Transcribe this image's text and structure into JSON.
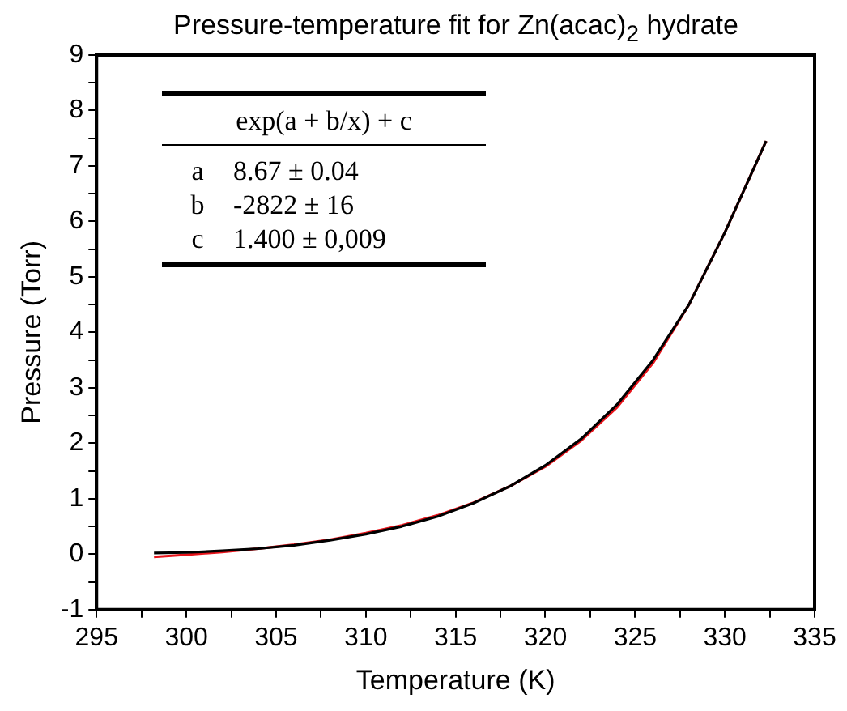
{
  "chart_data": {
    "type": "line",
    "title": "Pressure-temperature fit for Zn(acac)$_{2}$ hydrate",
    "xlabel": "Temperature (K)",
    "ylabel": "Pressure (Torr)",
    "xlim": [
      295,
      335
    ],
    "xticks": [
      295,
      {
        "value": 297.5,
        "label": null
      },
      300,
      {
        "value": 302.5,
        "label": null
      },
      305,
      {
        "value": 307.5,
        "label": null
      },
      310,
      {
        "value": 312.5,
        "label": null
      },
      315,
      {
        "value": 317.5,
        "label": null
      },
      320,
      {
        "value": 322.5,
        "label": null
      },
      325,
      {
        "value": 327.5,
        "label": null
      },
      330,
      {
        "value": 332.5,
        "label": null
      },
      335
    ],
    "ylim": [
      -1,
      9
    ],
    "yticks": [
      -1,
      {
        "value": -0.5,
        "label": null
      },
      0,
      {
        "value": 0.5,
        "label": null
      },
      1,
      {
        "value": 1.5,
        "label": null
      },
      2,
      {
        "value": 2.5,
        "label": null
      },
      3,
      {
        "value": 3.5,
        "label": null
      },
      4,
      {
        "value": 4.5,
        "label": null
      },
      5,
      {
        "value": 5.5,
        "label": null
      },
      6,
      {
        "value": 6.5,
        "label": null
      },
      7,
      {
        "value": 7.5,
        "label": null
      },
      8,
      {
        "value": 8.5,
        "label": null
      },
      9
    ],
    "x": [
      298.2,
      300,
      302,
      304,
      306,
      308,
      310,
      312,
      314,
      316,
      318,
      320,
      322,
      324,
      326,
      328,
      330,
      332.3
    ],
    "series": [
      {
        "color": "#000000",
        "values": [
          0.02,
          0.03,
          0.06,
          0.1,
          0.16,
          0.25,
          0.36,
          0.5,
          0.68,
          0.92,
          1.22,
          1.6,
          2.08,
          2.7,
          3.5,
          4.5,
          5.8,
          7.45
        ]
      },
      {
        "color": "#e8141b",
        "values": [
          -0.05,
          -0.01,
          0.04,
          0.1,
          0.17,
          0.26,
          0.38,
          0.52,
          0.7,
          0.93,
          1.22,
          1.58,
          2.05,
          2.65,
          3.45,
          4.5,
          5.8,
          7.45
        ]
      }
    ],
    "annotations": [
      "exp(a + b/x) + c",
      "a",
      "8.67 ± 0.04",
      "b",
      "-2822 ± 16",
      "c",
      "1.400 ± 0,009"
    ],
    "grid": false,
    "legend": false,
    "marker": "none",
    "line_style": "solid"
  }
}
